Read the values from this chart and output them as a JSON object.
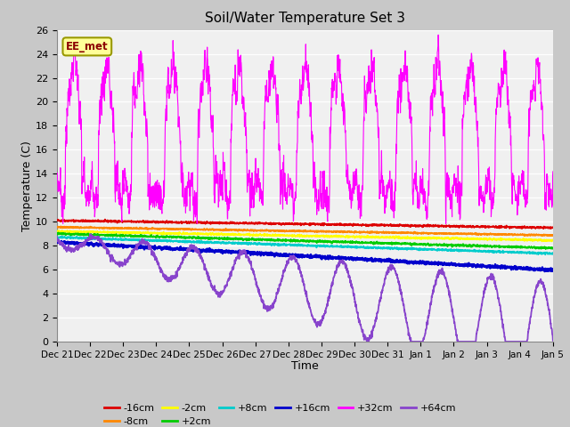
{
  "title": "Soil/Water Temperature Set 3",
  "xlabel": "Time",
  "ylabel": "Temperature (C)",
  "ylim": [
    0,
    26
  ],
  "yticks": [
    0,
    2,
    4,
    6,
    8,
    10,
    12,
    14,
    16,
    18,
    20,
    22,
    24,
    26
  ],
  "fig_bg_color": "#c8c8c8",
  "plot_bg_color": "#f0f0f0",
  "annotation_text": "EE_met",
  "annotation_bg": "#ffff99",
  "annotation_border": "#999900",
  "series_colors": {
    "-16cm": "#dd0000",
    "-8cm": "#ff8800",
    "-2cm": "#ffff00",
    "+2cm": "#00cc00",
    "+8cm": "#00cccc",
    "+16cm": "#0000cc",
    "+32cm": "#ff00ff",
    "+64cm": "#8844cc"
  },
  "legend_order": [
    "-16cm",
    "-8cm",
    "-2cm",
    "+2cm",
    "+8cm",
    "+16cm",
    "+32cm",
    "+64cm"
  ]
}
